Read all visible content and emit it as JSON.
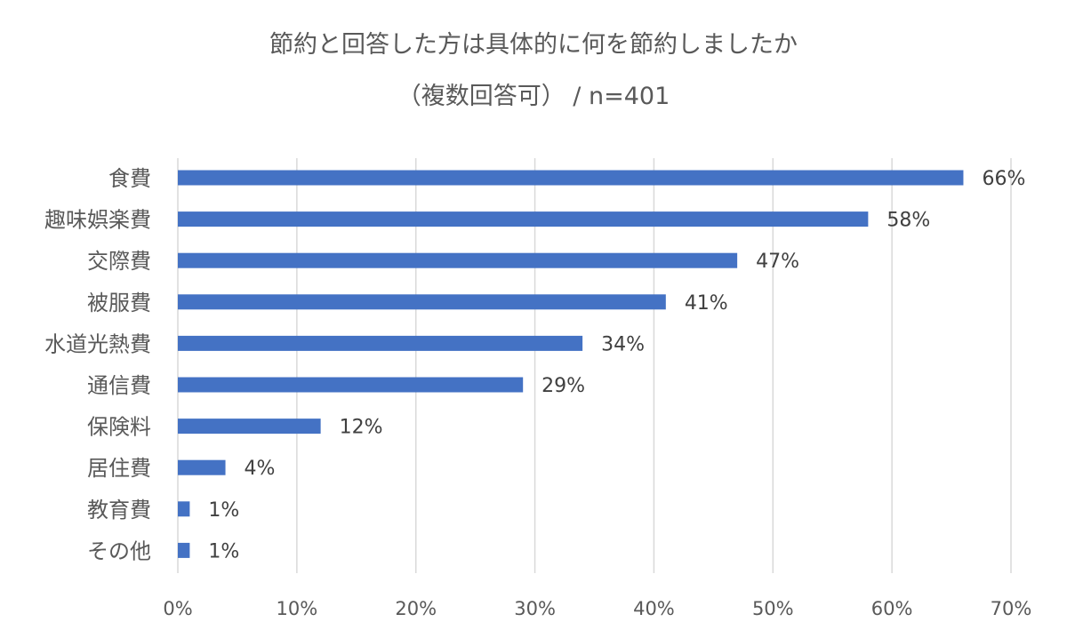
{
  "colors": {
    "bar": "#4472C4",
    "grid": "#d9d9d9",
    "text": "#595959"
  },
  "chart_data": {
    "type": "bar",
    "orientation": "horizontal",
    "title": "節約と回答した方は具体的に何を節約しましたか",
    "subtitle": "（複数回答可） / n=401",
    "categories": [
      "食費",
      "趣味娯楽費",
      "交際費",
      "被服費",
      "水道光熱費",
      "通信費",
      "保険料",
      "居住費",
      "教育費",
      "その他"
    ],
    "values": [
      66,
      58,
      47,
      41,
      34,
      29,
      12,
      4,
      1,
      1
    ],
    "value_labels": [
      "66%",
      "58%",
      "47%",
      "41%",
      "34%",
      "29%",
      "12%",
      "4%",
      "1%",
      "1%"
    ],
    "xlim": [
      0,
      70
    ],
    "x_ticks": [
      "0%",
      "10%",
      "20%",
      "30%",
      "40%",
      "50%",
      "60%",
      "70%"
    ],
    "grid": true,
    "legend": "none"
  }
}
